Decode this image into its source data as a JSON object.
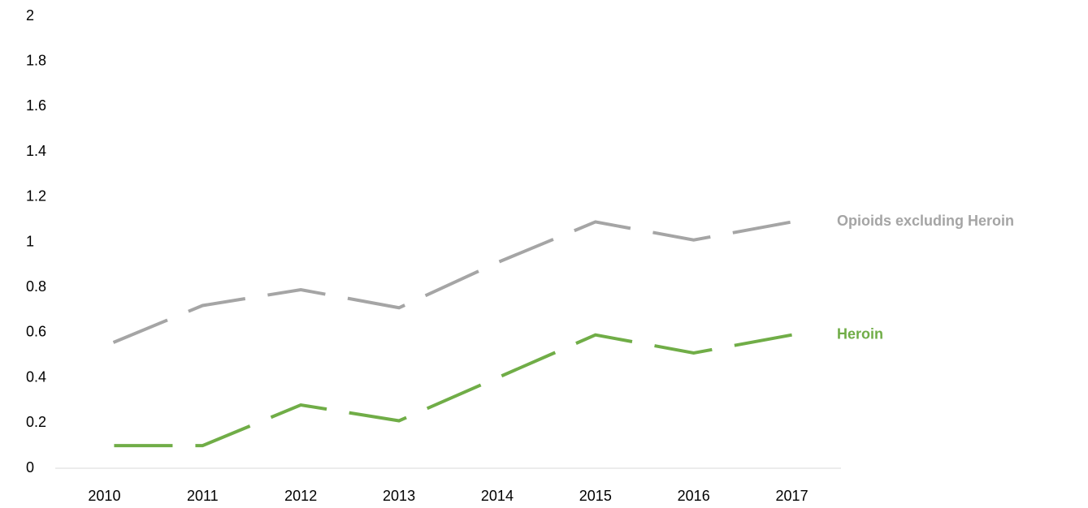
{
  "chart_data": {
    "type": "line",
    "categories": [
      "2010",
      "2011",
      "2012",
      "2013",
      "2014",
      "2015",
      "2016",
      "2017"
    ],
    "series": [
      {
        "name": "Opioids excluding Heroin",
        "color": "#a5a5a5",
        "values": [
          0.54,
          0.72,
          0.79,
          0.71,
          0.91,
          1.09,
          1.01,
          1.09
        ]
      },
      {
        "name": "Heroin",
        "color": "#70ad47",
        "values": [
          0.1,
          0.1,
          0.28,
          0.21,
          0.4,
          0.59,
          0.51,
          0.59
        ]
      }
    ],
    "ylim": [
      0,
      2
    ],
    "yticks": [
      0,
      0.2,
      0.4,
      0.6,
      0.8,
      1,
      1.2,
      1.4,
      1.6,
      1.8,
      2
    ],
    "grid": false
  }
}
